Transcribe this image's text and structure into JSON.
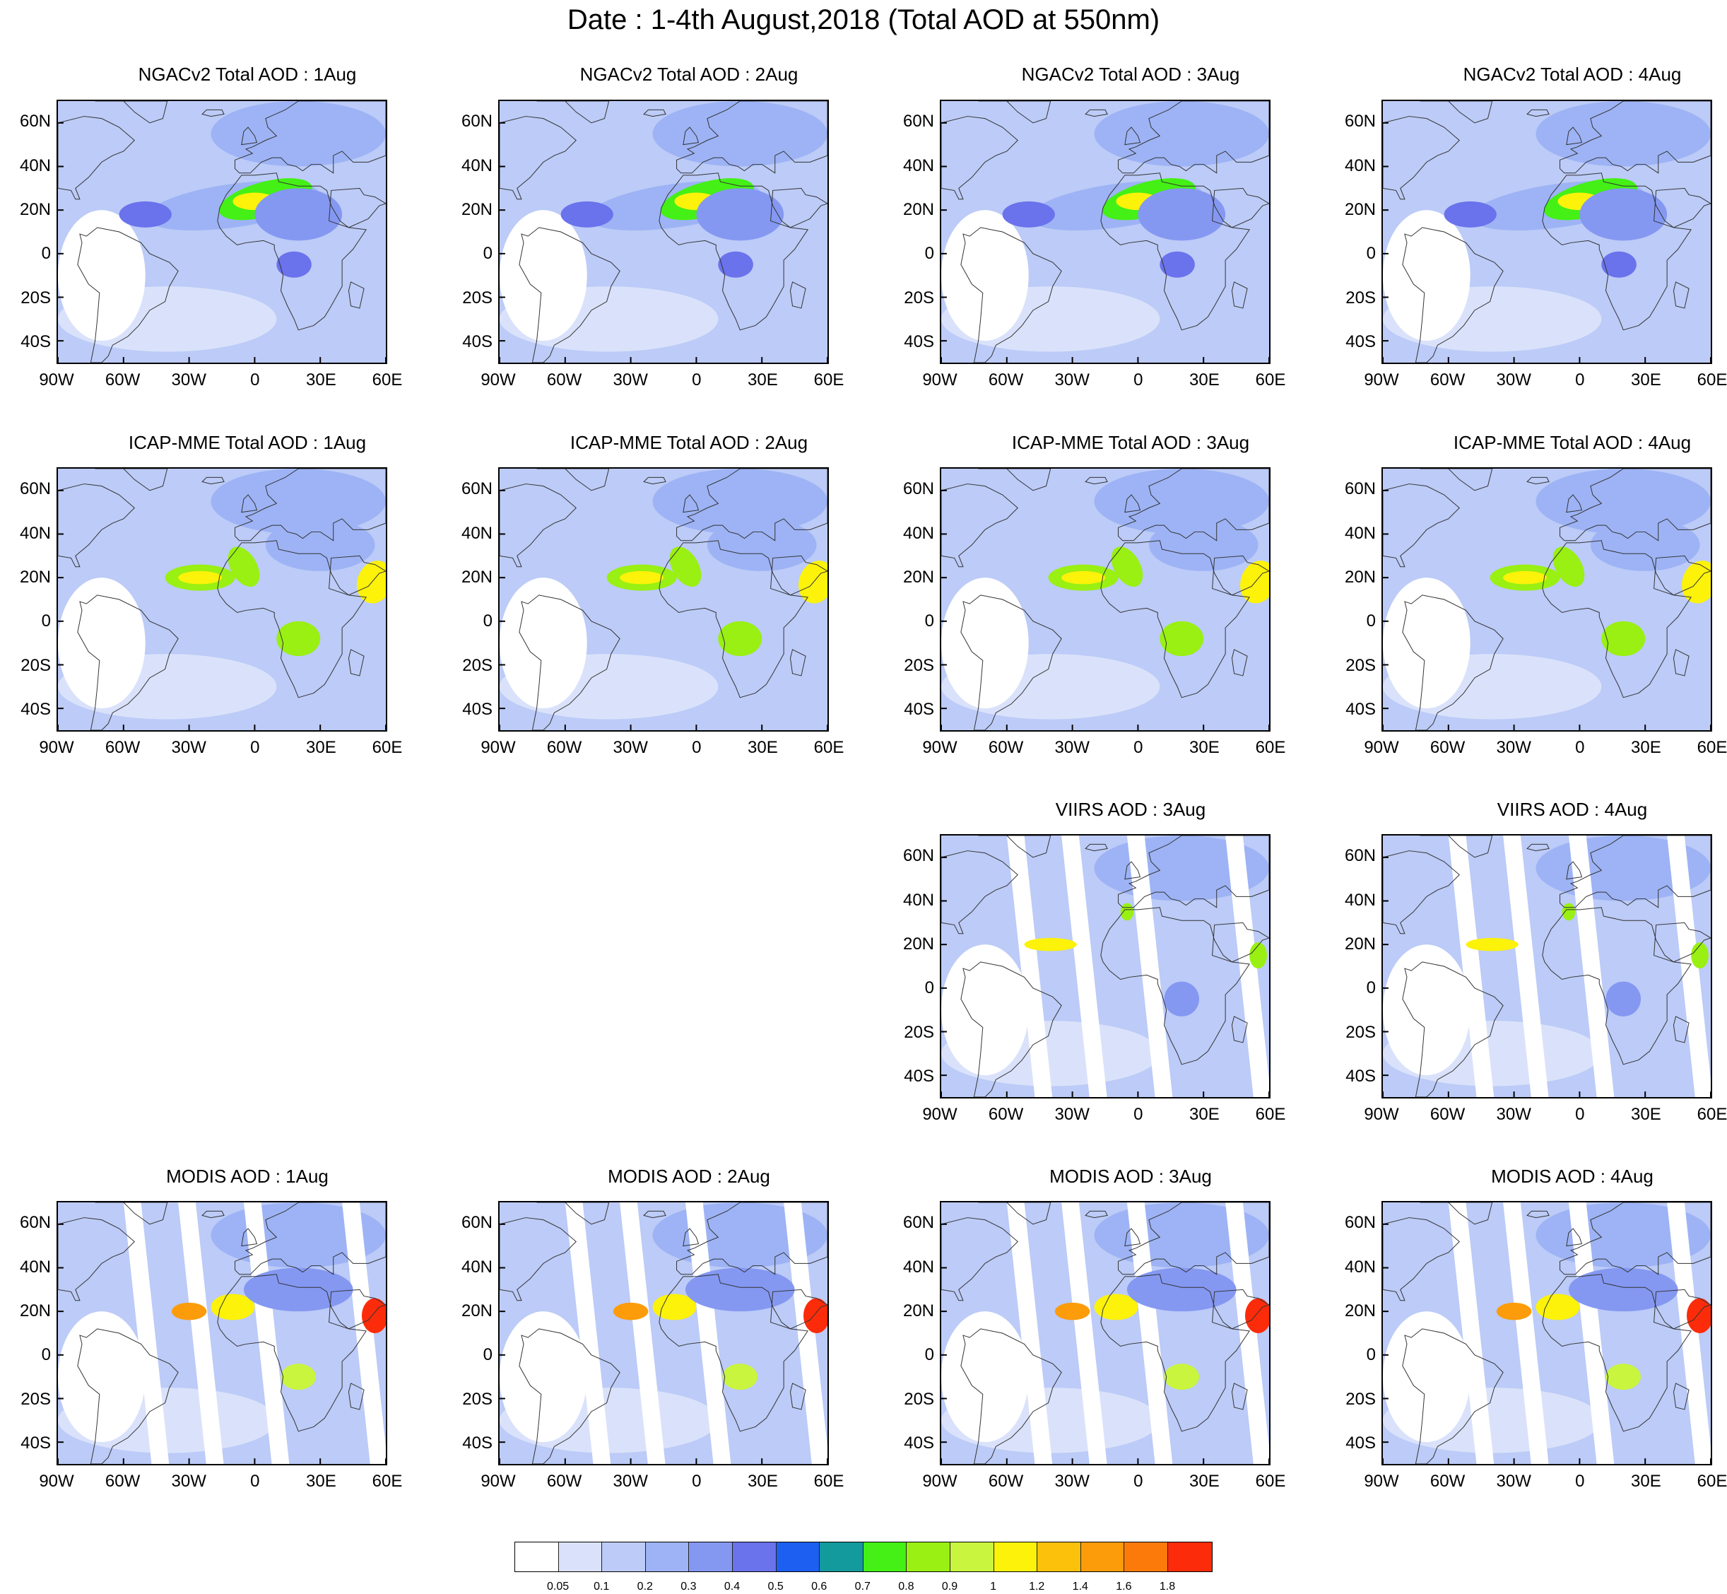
{
  "title": "Date : 1-4th August,2018 (Total AOD at 550nm)",
  "lat_labels": [
    "60N",
    "40N",
    "20N",
    "0",
    "20S",
    "40S"
  ],
  "lon_labels": [
    "90W",
    "60W",
    "30W",
    "0",
    "30E",
    "60E"
  ],
  "extent": {
    "lon": [
      -90,
      60
    ],
    "lat": [
      -50,
      70
    ]
  },
  "panels": [
    {
      "title": "NGACv2 Total AOD : 1Aug",
      "source": "NGACv2",
      "date": "1Aug"
    },
    {
      "title": "NGACv2 Total AOD : 2Aug",
      "source": "NGACv2",
      "date": "2Aug"
    },
    {
      "title": "NGACv2 Total AOD : 3Aug",
      "source": "NGACv2",
      "date": "3Aug"
    },
    {
      "title": "NGACv2 Total AOD : 4Aug",
      "source": "NGACv2",
      "date": "4Aug"
    },
    {
      "title": "ICAP-MME Total AOD : 1Aug",
      "source": "ICAP-MME",
      "date": "1Aug"
    },
    {
      "title": "ICAP-MME Total AOD : 2Aug",
      "source": "ICAP-MME",
      "date": "2Aug"
    },
    {
      "title": "ICAP-MME Total AOD : 3Aug",
      "source": "ICAP-MME",
      "date": "3Aug"
    },
    {
      "title": "ICAP-MME Total AOD : 4Aug",
      "source": "ICAP-MME",
      "date": "4Aug"
    },
    {
      "title": "VIIRS AOD : 3Aug",
      "source": "VIIRS",
      "date": "3Aug"
    },
    {
      "title": "VIIRS AOD : 4Aug",
      "source": "VIIRS",
      "date": "4Aug"
    },
    {
      "title": "MODIS AOD : 1Aug",
      "source": "MODIS",
      "date": "1Aug"
    },
    {
      "title": "MODIS AOD : 2Aug",
      "source": "MODIS",
      "date": "2Aug"
    },
    {
      "title": "MODIS AOD : 3Aug",
      "source": "MODIS",
      "date": "3Aug"
    },
    {
      "title": "MODIS AOD : 4Aug",
      "source": "MODIS",
      "date": "4Aug"
    }
  ],
  "colorbar": {
    "labels": [
      "0.05",
      "0.1",
      "0.2",
      "0.3",
      "0.4",
      "0.5",
      "0.6",
      "0.7",
      "0.8",
      "0.9",
      "1",
      "1.2",
      "1.4",
      "1.6",
      "1.8"
    ],
    "colors": [
      "#ffffff",
      "#dae2fb",
      "#bccbf7",
      "#9db3f5",
      "#8498f2",
      "#6a72ec",
      "#1d5ff0",
      "#139a9c",
      "#44f016",
      "#99f012",
      "#c9f53f",
      "#fcf20a",
      "#fcc10a",
      "#fc9c0a",
      "#fc7a0a",
      "#fc2c0a"
    ]
  }
}
